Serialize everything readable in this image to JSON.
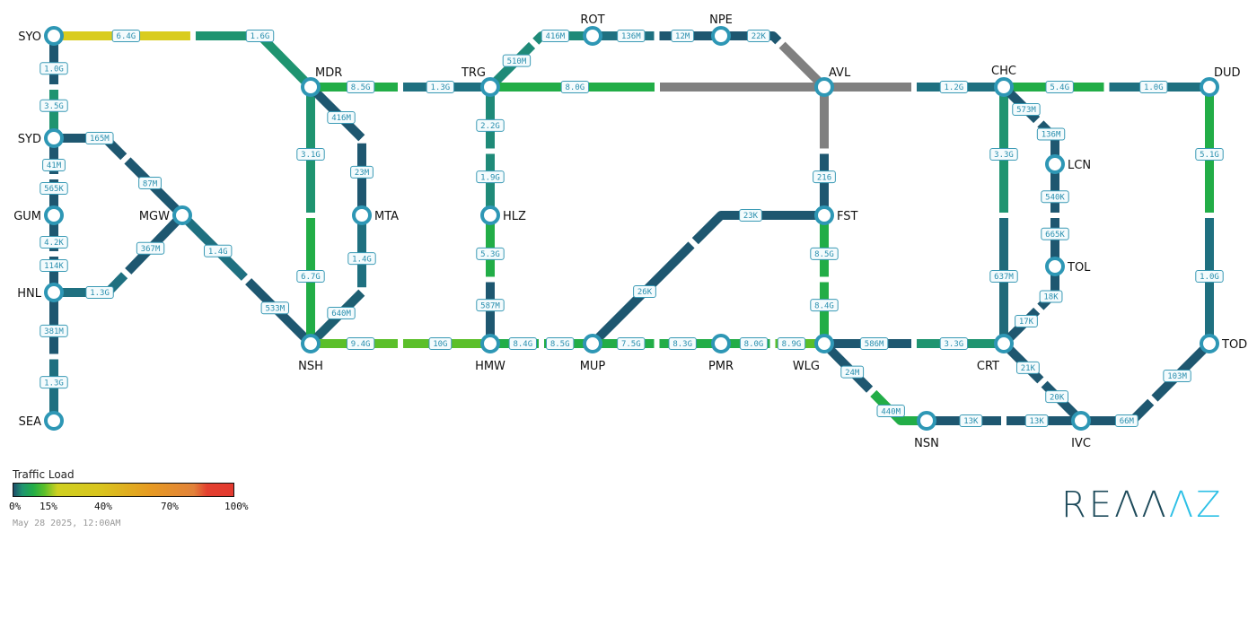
{
  "nodes": [
    "SYO",
    "SYD",
    "GUM",
    "HNL",
    "SEA",
    "MGW",
    "MDR",
    "NSH",
    "MTA",
    "TRG",
    "HLZ",
    "HMW",
    "ROT",
    "NPE",
    "AVL",
    "FST",
    "MUP",
    "PMR",
    "WLG",
    "CHC",
    "DUD",
    "LCN",
    "TOL",
    "CRT",
    "TOD",
    "NSN",
    "IVC"
  ],
  "colors": {
    "node_ring": "#2e97b5",
    "low": "#1e5770",
    "teal": "#1f7080",
    "teal_green": "#1f9470",
    "green": "#22ad47",
    "light_green": "#5bbf2a",
    "yellow": "#d9cc1e",
    "unknown": "#808080"
  },
  "links": [
    {
      "a": "SYO",
      "b": "MDR",
      "halves": [
        {
          "label": "6.4G",
          "color": "#d9cc1e"
        },
        {
          "label": "1.6G",
          "color": "#1f9470"
        }
      ]
    },
    {
      "a": "SYO",
      "b": "SYD",
      "halves": [
        {
          "label": "1.0G",
          "color": "#1e5770"
        },
        {
          "label": "3.5G",
          "color": "#1f9470"
        }
      ]
    },
    {
      "a": "SYD",
      "b": "GUM",
      "halves": [
        {
          "label": "41M",
          "color": "#1e5770"
        },
        {
          "label": "565K",
          "color": "#1e5770"
        }
      ]
    },
    {
      "a": "GUM",
      "b": "HNL",
      "halves": [
        {
          "label": "4.2K",
          "color": "#1e5770"
        },
        {
          "label": "114K",
          "color": "#1e5770"
        }
      ]
    },
    {
      "a": "HNL",
      "b": "SEA",
      "halves": [
        {
          "label": "381M",
          "color": "#1e5770"
        },
        {
          "label": "1.3G",
          "color": "#1f7080"
        }
      ]
    },
    {
      "a": "SYD",
      "b": "MGW",
      "halves": [
        {
          "label": "165M",
          "color": "#1e5770"
        },
        {
          "label": "87M",
          "color": "#1e5770"
        }
      ]
    },
    {
      "a": "HNL",
      "b": "MGW",
      "halves": [
        {
          "label": "1.3G",
          "color": "#1f7080"
        },
        {
          "label": "367M",
          "color": "#1e5770"
        }
      ]
    },
    {
      "a": "MGW",
      "b": "NSH",
      "halves": [
        {
          "label": "1.4G",
          "color": "#1f7080"
        },
        {
          "label": "533M",
          "color": "#1e5770"
        }
      ]
    },
    {
      "a": "MDR",
      "b": "NSH",
      "halves": [
        {
          "label": "3.1G",
          "color": "#1f9470"
        },
        {
          "label": "6.7G",
          "color": "#22ad47"
        }
      ]
    },
    {
      "a": "MDR",
      "b": "MTA",
      "halves": [
        {
          "label": "416M",
          "color": "#1e5770"
        },
        {
          "label": "23M",
          "color": "#1e5770"
        }
      ]
    },
    {
      "a": "MTA",
      "b": "NSH",
      "halves": [
        {
          "label": "1.4G",
          "color": "#1f7080"
        },
        {
          "label": "640M",
          "color": "#1e5f72"
        }
      ]
    },
    {
      "a": "MDR",
      "b": "TRG",
      "halves": [
        {
          "label": "8.5G",
          "color": "#22ad47"
        },
        {
          "label": "1.3G",
          "color": "#1f7080"
        }
      ]
    },
    {
      "a": "NSH",
      "b": "HMW",
      "halves": [
        {
          "label": "9.4G",
          "color": "#5bbf2a"
        },
        {
          "label": "10G",
          "color": "#5bbf2a"
        }
      ]
    },
    {
      "a": "TRG",
      "b": "HLZ",
      "halves": [
        {
          "label": "2.2G",
          "color": "#1f8a78"
        },
        {
          "label": "1.9G",
          "color": "#1f8a78"
        }
      ]
    },
    {
      "a": "HLZ",
      "b": "HMW",
      "halves": [
        {
          "label": "5.3G",
          "color": "#22ad47"
        },
        {
          "label": "587M",
          "color": "#1e5770"
        }
      ]
    },
    {
      "a": "TRG",
      "b": "ROT",
      "halves": [
        {
          "label": "510M",
          "color": "#1f8a78"
        },
        {
          "label": "416M",
          "color": "#1f8a78"
        }
      ]
    },
    {
      "a": "ROT",
      "b": "NPE",
      "halves": [
        {
          "label": "136M",
          "color": "#1f7080"
        },
        {
          "label": "12M",
          "color": "#1e5770"
        }
      ]
    },
    {
      "a": "NPE",
      "b": "AVL",
      "halves": [
        {
          "label": "22K",
          "color": "#1e5770"
        },
        {
          "label": "",
          "color": "#808080"
        }
      ]
    },
    {
      "a": "TRG",
      "b": "AVL",
      "halves": [
        {
          "label": "8.0G",
          "color": "#22ad47"
        },
        {
          "label": "",
          "color": "#808080"
        }
      ]
    },
    {
      "a": "AVL",
      "b": "FST",
      "halves": [
        {
          "label": "",
          "color": "#808080"
        },
        {
          "label": "216",
          "color": "#1e5770"
        }
      ]
    },
    {
      "a": "AVL",
      "b": "CHC",
      "halves": [
        {
          "label": "",
          "color": "#808080"
        },
        {
          "label": "1.2G",
          "color": "#1f7080"
        }
      ]
    },
    {
      "a": "CHC",
      "b": "DUD",
      "halves": [
        {
          "label": "5.4G",
          "color": "#22ad47"
        },
        {
          "label": "1.0G",
          "color": "#1f7080"
        }
      ]
    },
    {
      "a": "HMW",
      "b": "MUP",
      "halves": [
        {
          "label": "8.4G",
          "color": "#22ad47"
        },
        {
          "label": "8.5G",
          "color": "#22ad47"
        }
      ]
    },
    {
      "a": "MUP",
      "b": "FST",
      "halves": [
        {
          "label": "26K",
          "color": "#1e5770"
        },
        {
          "label": "23K",
          "color": "#1e5770"
        }
      ]
    },
    {
      "a": "MUP",
      "b": "PMR",
      "halves": [
        {
          "label": "7.5G",
          "color": "#22ad47"
        },
        {
          "label": "8.3G",
          "color": "#22ad47"
        }
      ]
    },
    {
      "a": "PMR",
      "b": "WLG",
      "halves": [
        {
          "label": "8.0G",
          "color": "#22ad47"
        },
        {
          "label": "8.9G",
          "color": "#5bbf2a"
        }
      ]
    },
    {
      "a": "FST",
      "b": "WLG",
      "halves": [
        {
          "label": "8.5G",
          "color": "#22ad47"
        },
        {
          "label": "8.4G",
          "color": "#22ad47"
        }
      ]
    },
    {
      "a": "WLG",
      "b": "CRT",
      "halves": [
        {
          "label": "586M",
          "color": "#1e5770"
        },
        {
          "label": "3.3G",
          "color": "#1f9470"
        }
      ]
    },
    {
      "a": "WLG",
      "b": "NSN",
      "halves": [
        {
          "label": "24M",
          "color": "#1e5770"
        },
        {
          "label": "440M",
          "color": "#22ad47"
        }
      ]
    },
    {
      "a": "CHC",
      "b": "CRT",
      "halves": [
        {
          "label": "3.3G",
          "color": "#1f9470"
        },
        {
          "label": "637M",
          "color": "#1f6a7a"
        }
      ]
    },
    {
      "a": "CHC",
      "b": "LCN",
      "halves": [
        {
          "label": "573M",
          "color": "#1e5770"
        },
        {
          "label": "136M",
          "color": "#1e5770"
        }
      ]
    },
    {
      "a": "LCN",
      "b": "TOL",
      "halves": [
        {
          "label": "540K",
          "color": "#1e5770"
        },
        {
          "label": "665K",
          "color": "#1e5770"
        }
      ]
    },
    {
      "a": "TOL",
      "b": "CRT",
      "halves": [
        {
          "label": "18K",
          "color": "#1e5770"
        },
        {
          "label": "17K",
          "color": "#1e5770"
        }
      ]
    },
    {
      "a": "CRT",
      "b": "IVC",
      "halves": [
        {
          "label": "21K",
          "color": "#1e5770"
        },
        {
          "label": "20K",
          "color": "#1e5770"
        }
      ]
    },
    {
      "a": "NSN",
      "b": "IVC",
      "halves": [
        {
          "label": "13K",
          "color": "#1e5770"
        },
        {
          "label": "13K",
          "color": "#1e5770"
        }
      ]
    },
    {
      "a": "IVC",
      "b": "TOD",
      "halves": [
        {
          "label": "66M",
          "color": "#1e5770"
        },
        {
          "label": "103M",
          "color": "#1e5770"
        }
      ]
    },
    {
      "a": "DUD",
      "b": "TOD",
      "halves": [
        {
          "label": "5.1G",
          "color": "#22ad47"
        },
        {
          "label": "1.0G",
          "color": "#1f7080"
        }
      ]
    }
  ],
  "legend": {
    "title": "Traffic Load",
    "ticks": [
      "0%",
      "15%",
      "40%",
      "70%",
      "100%"
    ]
  },
  "timestamp": "May 28 2025, 12:00AM",
  "logo": {
    "text": "REANNZ",
    "part_dark": "REΛΛ",
    "part_cyan": "ΛZ"
  }
}
